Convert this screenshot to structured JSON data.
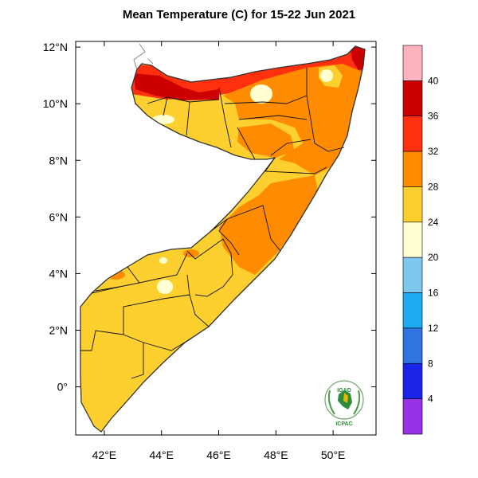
{
  "title": "Mean Temperature (C) for 15-22 Jun 2021",
  "map": {
    "lon_range": [
      41,
      51.5
    ],
    "lat_range": [
      -1.7,
      12.2
    ],
    "lat_ticks": [
      {
        "value": 12,
        "label": "12°N"
      },
      {
        "value": 10,
        "label": "10°N"
      },
      {
        "value": 8,
        "label": "8°N"
      },
      {
        "value": 6,
        "label": "6°N"
      },
      {
        "value": 4,
        "label": "4°N"
      },
      {
        "value": 2,
        "label": "2°N"
      },
      {
        "value": 0,
        "label": "0°"
      }
    ],
    "lon_ticks": [
      {
        "value": 42,
        "label": "42°E"
      },
      {
        "value": 44,
        "label": "44°E"
      },
      {
        "value": 46,
        "label": "46°E"
      },
      {
        "value": 48,
        "label": "48°E"
      },
      {
        "value": 50,
        "label": "50°E"
      }
    ]
  },
  "colorbar": {
    "labels": [
      "4",
      "8",
      "12",
      "16",
      "20",
      "24",
      "28",
      "32",
      "36",
      "40"
    ],
    "colors": [
      "#9932e6",
      "#1a24e6",
      "#2f74e0",
      "#1eaaf0",
      "#7ec8f0",
      "#ffffd2",
      "#fdd030",
      "#ff8c00",
      "#ff3010",
      "#cc0000",
      "#ffb3be"
    ]
  },
  "logo": {
    "top_text": "IGAD",
    "bottom_text": "ICPAC"
  }
}
